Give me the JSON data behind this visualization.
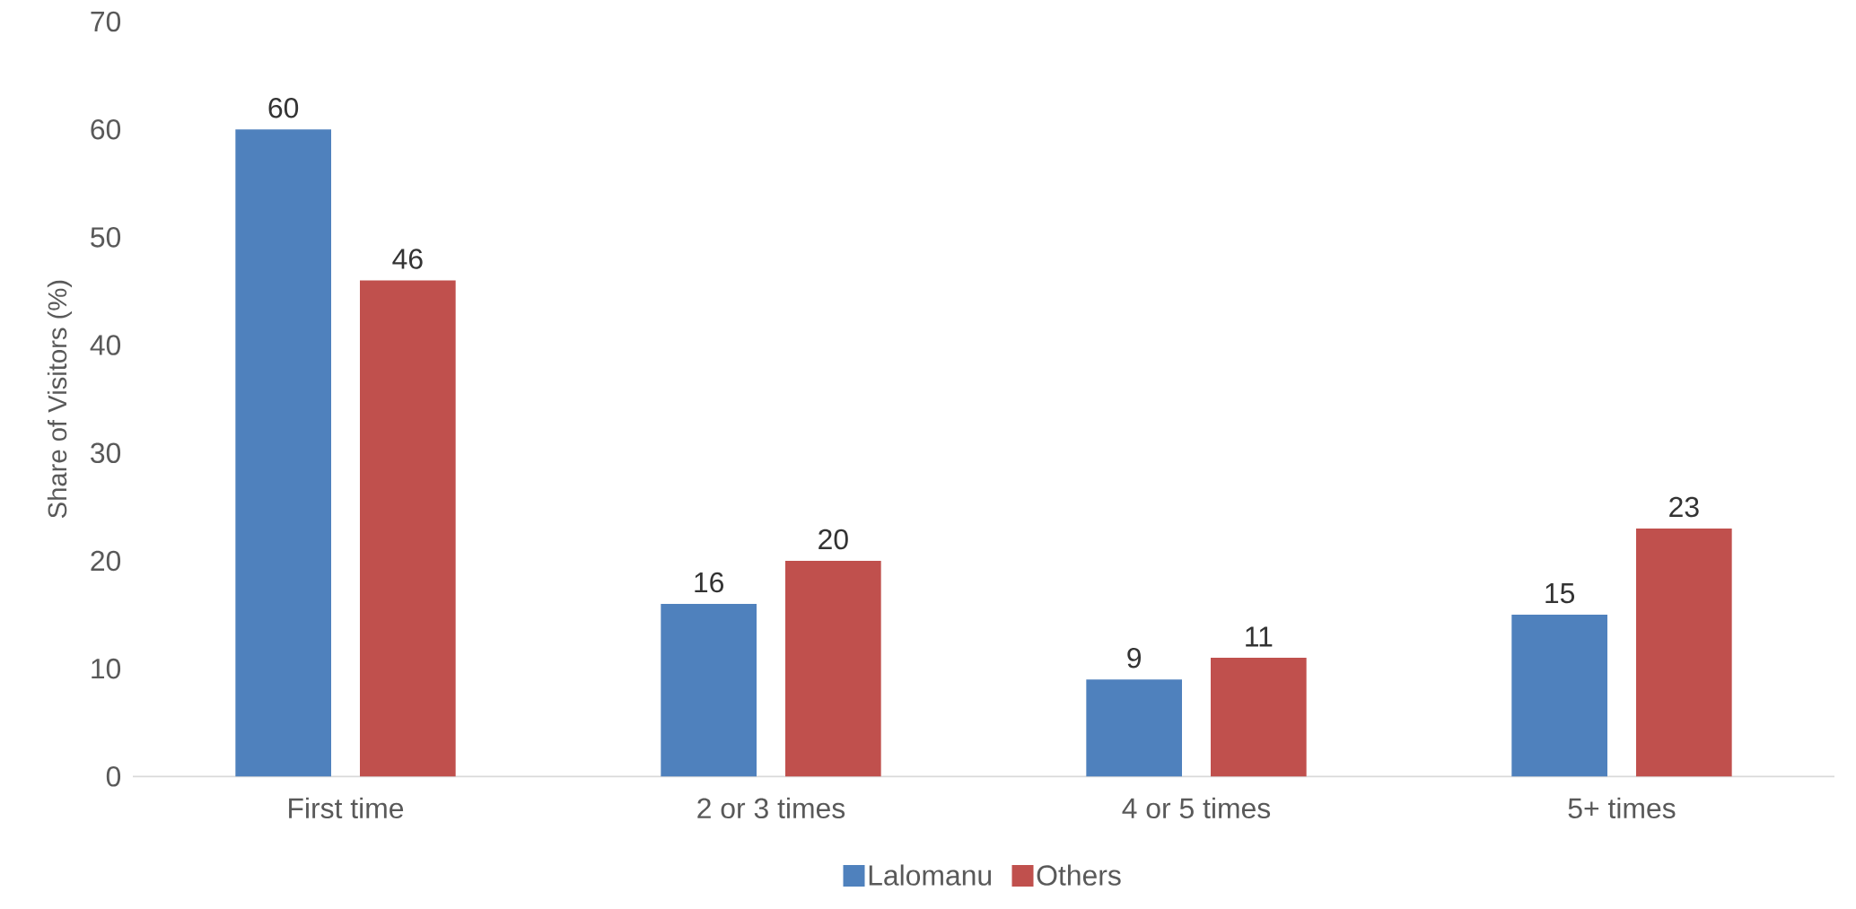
{
  "chart_data": {
    "type": "bar",
    "ylabel": "Share of Visitors (%)",
    "categories": [
      "First time",
      "2 or 3 times",
      "4 or 5 times",
      "5+ times"
    ],
    "series": [
      {
        "name": "Lalomanu",
        "color": "#4f81bd",
        "values": [
          60,
          16,
          9,
          15
        ]
      },
      {
        "name": "Others",
        "color": "#c0504d",
        "values": [
          46,
          20,
          11,
          23
        ]
      }
    ],
    "ylim": [
      0,
      70
    ],
    "yticks": [
      0,
      10,
      20,
      30,
      40,
      50,
      60,
      70
    ],
    "data_labels": true,
    "legend": "bottom"
  }
}
